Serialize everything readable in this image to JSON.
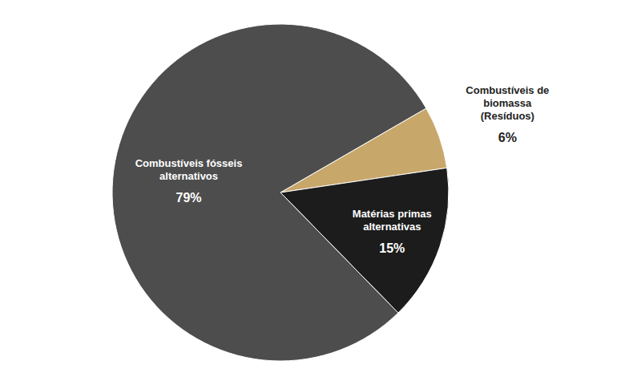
{
  "chart_data": {
    "type": "pie",
    "categories": [
      "Combustíveis de biomassa (Resíduos)",
      "Matérias primas alternativas",
      "Combustíveis fósseis alternativos"
    ],
    "values": [
      6,
      15,
      79
    ],
    "value_labels": [
      "6%",
      "15%",
      "79%"
    ],
    "colors": [
      "#c8a76a",
      "#1c1c1c",
      "#4d4d4d"
    ],
    "data_labels": true
  }
}
